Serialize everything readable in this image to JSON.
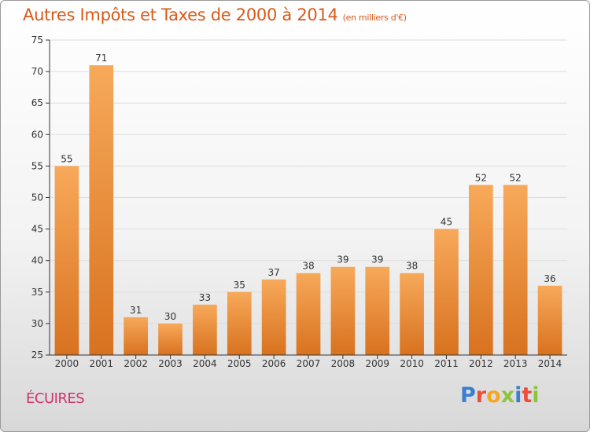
{
  "title": "Autres Impôts et Taxes de 2000 à 2014",
  "title_unit": "(en milliers d'€)",
  "commune": "ÉCUIRES",
  "logo": {
    "letters": [
      "P",
      "r",
      "o",
      "x",
      "i",
      "t",
      "i"
    ],
    "colors": [
      "#3a7fd0",
      "#e94f3c",
      "#f5a623",
      "#8cc63f",
      "#3a7fd0",
      "#e94f3c",
      "#8cc63f"
    ]
  },
  "colors": {
    "title": "#d85a1a",
    "commune": "#d0326e",
    "bar_top": "#f7a95a",
    "bar_bottom": "#d8721f",
    "grid": "#dddddd"
  },
  "chart_data": {
    "type": "bar",
    "title": "Autres Impôts et Taxes de 2000 à 2014",
    "categories": [
      "2000",
      "2001",
      "2002",
      "2003",
      "2004",
      "2005",
      "2006",
      "2007",
      "2008",
      "2009",
      "2010",
      "2011",
      "2012",
      "2013",
      "2014"
    ],
    "values": [
      55,
      71,
      31,
      30,
      33,
      35,
      37,
      38,
      39,
      39,
      38,
      45,
      52,
      52,
      36
    ],
    "ylim": [
      25,
      75
    ],
    "yticks": [
      25,
      30,
      35,
      40,
      45,
      50,
      55,
      60,
      65,
      70,
      75
    ],
    "grid": true,
    "xlabel": "",
    "ylabel": ""
  }
}
